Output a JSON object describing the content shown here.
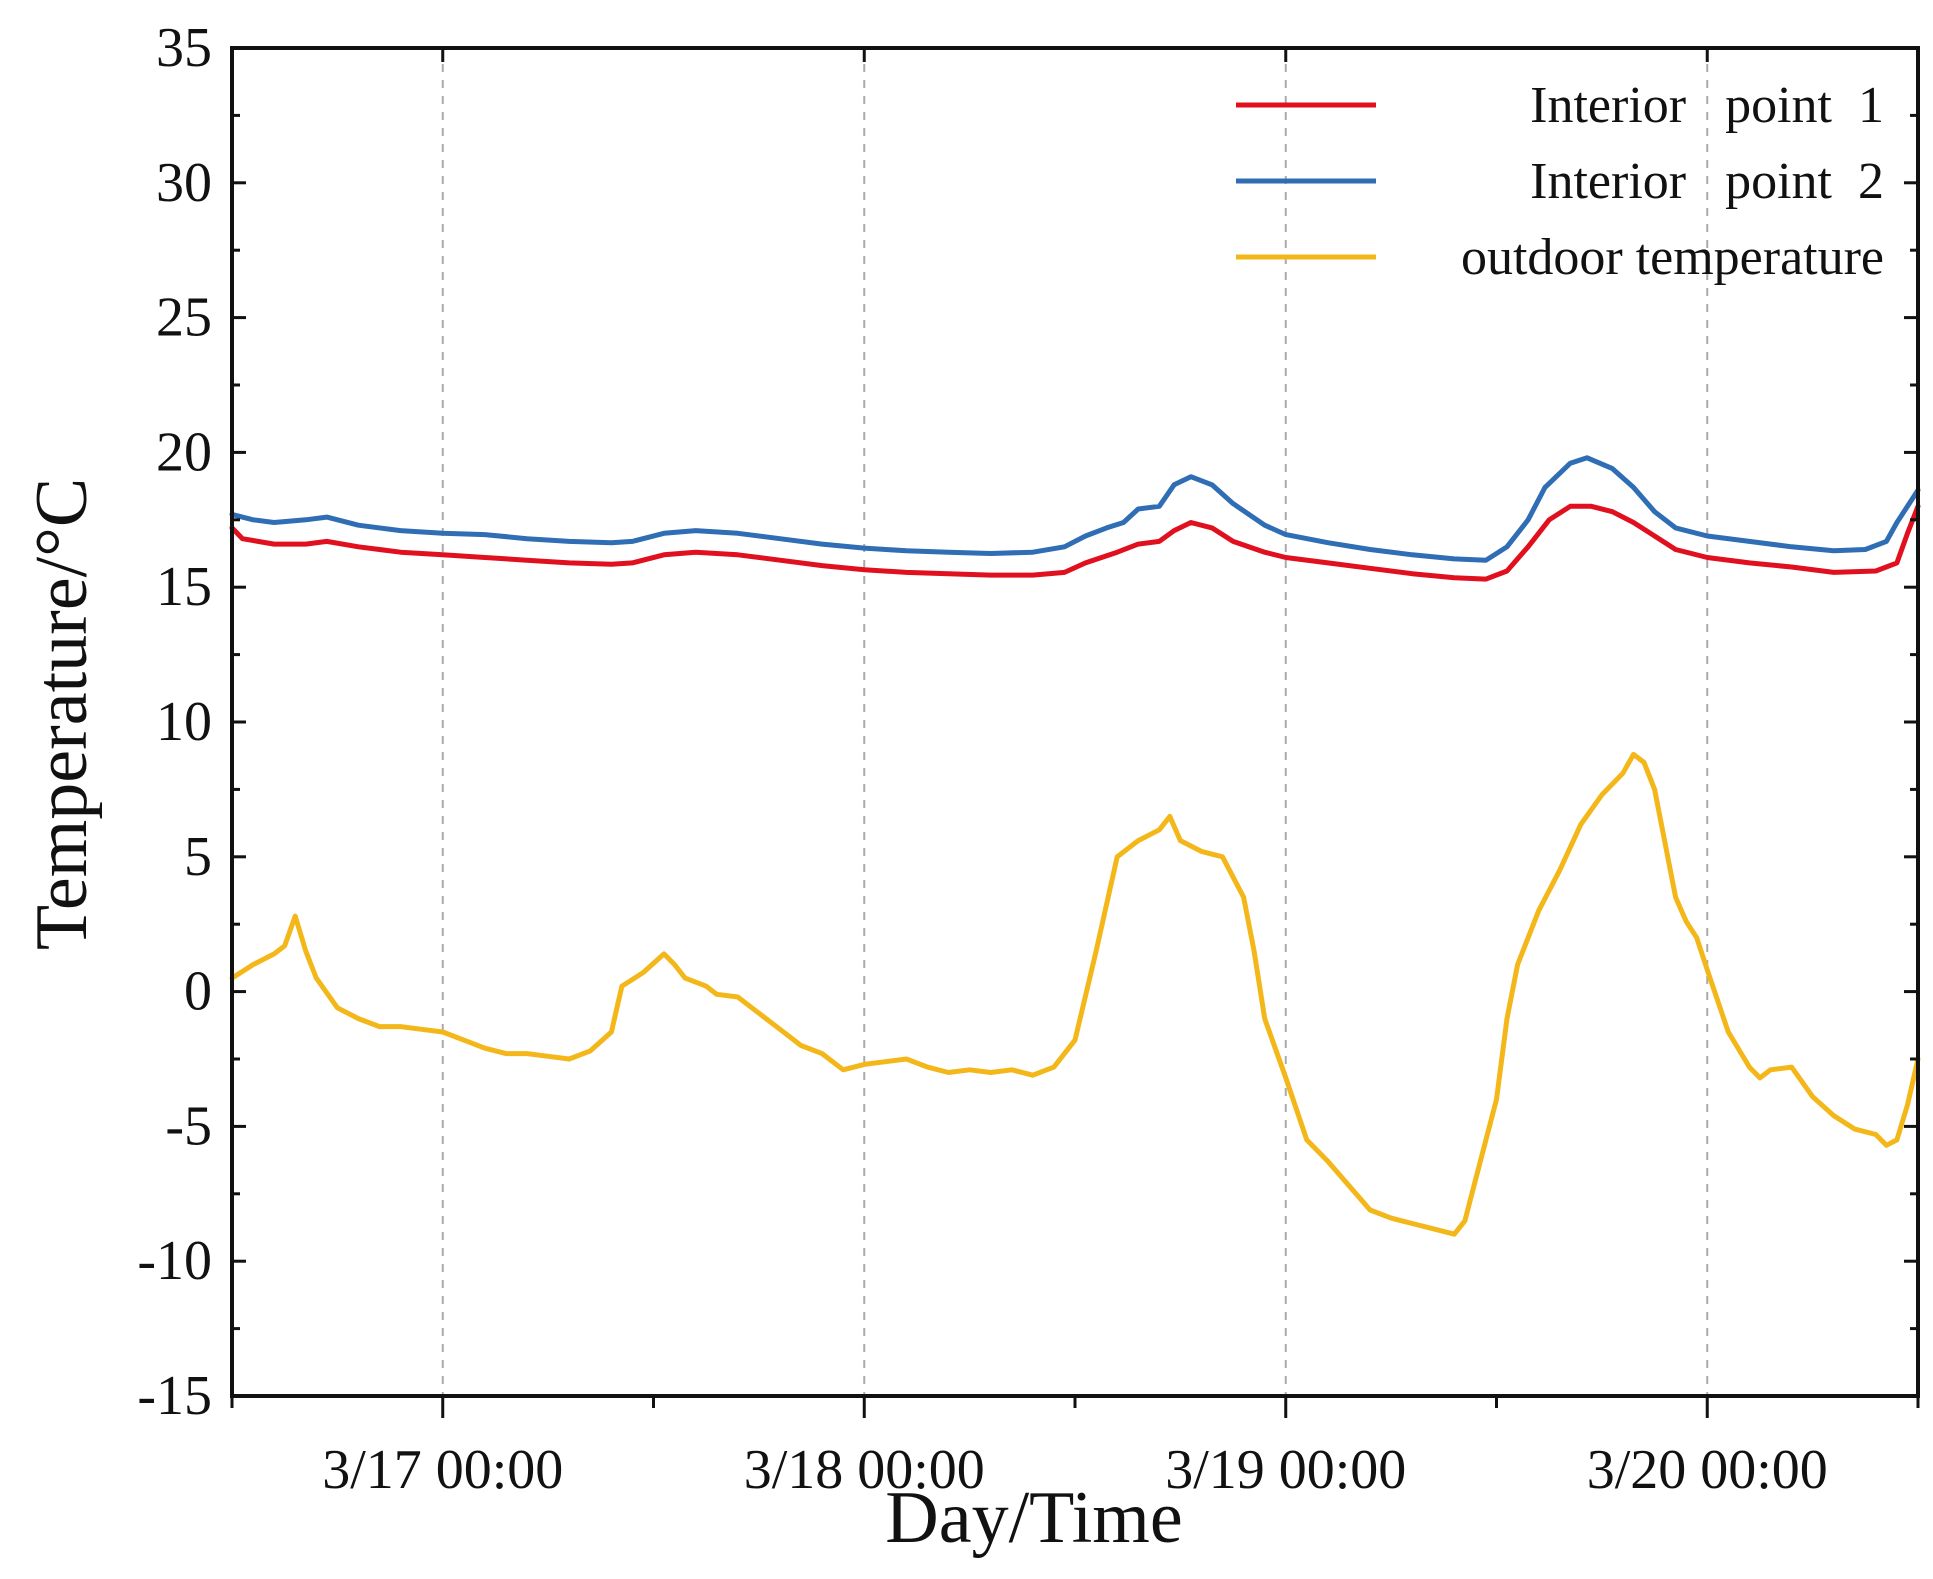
{
  "chart_data": {
    "type": "line",
    "title": "",
    "xlabel": "Day/Time",
    "ylabel": "Temperature/°C",
    "ylim": [
      -15,
      35
    ],
    "yticks": [
      -15,
      -10,
      -5,
      0,
      5,
      10,
      15,
      20,
      25,
      30,
      35
    ],
    "xlim": [
      -10,
      70
    ],
    "x_unit": "hours from 3/17 00:00",
    "xticks": [
      {
        "value": 0,
        "label": "3/17 00:00"
      },
      {
        "value": 20,
        "label": "3/18 00:00"
      },
      {
        "value": 40,
        "label": "3/19 00:00"
      },
      {
        "value": 60,
        "label": "3/20 00:00"
      }
    ],
    "x_minor_ticks": [
      -10,
      10,
      30,
      50,
      70
    ],
    "grid": "vertical dashed at major x ticks",
    "legend_position": "top-right",
    "series": [
      {
        "name": "Interior   point  1",
        "color": "#e0101e",
        "points": [
          [
            -10,
            17.2
          ],
          [
            -9.5,
            16.8
          ],
          [
            -8,
            16.6
          ],
          [
            -6.5,
            16.6
          ],
          [
            -5.5,
            16.7
          ],
          [
            -4,
            16.5
          ],
          [
            -2,
            16.3
          ],
          [
            0,
            16.2
          ],
          [
            2,
            16.1
          ],
          [
            4,
            16.0
          ],
          [
            6,
            15.9
          ],
          [
            8,
            15.85
          ],
          [
            9,
            15.9
          ],
          [
            10.5,
            16.2
          ],
          [
            12,
            16.3
          ],
          [
            14,
            16.2
          ],
          [
            16,
            16.0
          ],
          [
            18,
            15.8
          ],
          [
            20,
            15.65
          ],
          [
            22,
            15.55
          ],
          [
            24,
            15.5
          ],
          [
            26,
            15.45
          ],
          [
            28,
            15.45
          ],
          [
            29.5,
            15.55
          ],
          [
            30.5,
            15.9
          ],
          [
            32,
            16.3
          ],
          [
            33,
            16.6
          ],
          [
            34,
            16.7
          ],
          [
            34.7,
            17.1
          ],
          [
            35.5,
            17.4
          ],
          [
            36.5,
            17.2
          ],
          [
            37.5,
            16.7
          ],
          [
            39,
            16.3
          ],
          [
            40,
            16.1
          ],
          [
            42,
            15.9
          ],
          [
            44,
            15.7
          ],
          [
            46,
            15.5
          ],
          [
            48,
            15.35
          ],
          [
            49.5,
            15.3
          ],
          [
            50.5,
            15.6
          ],
          [
            51.5,
            16.5
          ],
          [
            52.5,
            17.5
          ],
          [
            53.5,
            18.0
          ],
          [
            54.5,
            18.0
          ],
          [
            55.5,
            17.8
          ],
          [
            56.5,
            17.4
          ],
          [
            57.5,
            16.9
          ],
          [
            58.5,
            16.4
          ],
          [
            60,
            16.1
          ],
          [
            62,
            15.9
          ],
          [
            64,
            15.75
          ],
          [
            66,
            15.55
          ],
          [
            68,
            15.6
          ],
          [
            69,
            15.9
          ],
          [
            69.5,
            17.0
          ],
          [
            70,
            18.0
          ]
        ]
      },
      {
        "name": "Interior   point  2",
        "color": "#2f6db4",
        "points": [
          [
            -10,
            17.7
          ],
          [
            -9,
            17.5
          ],
          [
            -8,
            17.4
          ],
          [
            -6.5,
            17.5
          ],
          [
            -5.5,
            17.6
          ],
          [
            -4,
            17.3
          ],
          [
            -2,
            17.1
          ],
          [
            0,
            17.0
          ],
          [
            2,
            16.95
          ],
          [
            4,
            16.8
          ],
          [
            6,
            16.7
          ],
          [
            8,
            16.65
          ],
          [
            9,
            16.7
          ],
          [
            10.5,
            17.0
          ],
          [
            12,
            17.1
          ],
          [
            14,
            17.0
          ],
          [
            16,
            16.8
          ],
          [
            18,
            16.6
          ],
          [
            20,
            16.45
          ],
          [
            22,
            16.35
          ],
          [
            24,
            16.3
          ],
          [
            26,
            16.25
          ],
          [
            28,
            16.3
          ],
          [
            29.5,
            16.5
          ],
          [
            30.5,
            16.9
          ],
          [
            31.5,
            17.2
          ],
          [
            32.3,
            17.4
          ],
          [
            33,
            17.9
          ],
          [
            34,
            18.0
          ],
          [
            34.7,
            18.8
          ],
          [
            35.5,
            19.1
          ],
          [
            36.5,
            18.8
          ],
          [
            37.5,
            18.1
          ],
          [
            39,
            17.3
          ],
          [
            40,
            16.95
          ],
          [
            42,
            16.65
          ],
          [
            44,
            16.4
          ],
          [
            46,
            16.2
          ],
          [
            48,
            16.05
          ],
          [
            49.5,
            16.0
          ],
          [
            50.5,
            16.5
          ],
          [
            51.5,
            17.5
          ],
          [
            52.3,
            18.7
          ],
          [
            53.5,
            19.6
          ],
          [
            54.3,
            19.8
          ],
          [
            55.5,
            19.4
          ],
          [
            56.5,
            18.7
          ],
          [
            57.5,
            17.8
          ],
          [
            58.5,
            17.2
          ],
          [
            60,
            16.9
          ],
          [
            62,
            16.7
          ],
          [
            64,
            16.5
          ],
          [
            66,
            16.35
          ],
          [
            67.5,
            16.4
          ],
          [
            68.5,
            16.7
          ],
          [
            69,
            17.4
          ],
          [
            69.5,
            18.0
          ],
          [
            70,
            18.6
          ]
        ]
      },
      {
        "name": "outdoor temperature",
        "color": "#f4b71a",
        "points": [
          [
            -10,
            0.5
          ],
          [
            -9,
            1.0
          ],
          [
            -8,
            1.4
          ],
          [
            -7.5,
            1.7
          ],
          [
            -7,
            2.8
          ],
          [
            -6.5,
            1.5
          ],
          [
            -6,
            0.5
          ],
          [
            -5,
            -0.6
          ],
          [
            -4,
            -1.0
          ],
          [
            -3,
            -1.3
          ],
          [
            -2,
            -1.3
          ],
          [
            -1,
            -1.4
          ],
          [
            0,
            -1.5
          ],
          [
            1,
            -1.8
          ],
          [
            2,
            -2.1
          ],
          [
            3,
            -2.3
          ],
          [
            4,
            -2.3
          ],
          [
            5,
            -2.4
          ],
          [
            6,
            -2.5
          ],
          [
            7,
            -2.2
          ],
          [
            8,
            -1.5
          ],
          [
            8.5,
            0.2
          ],
          [
            9.5,
            0.7
          ],
          [
            10.5,
            1.4
          ],
          [
            11,
            1.0
          ],
          [
            11.5,
            0.5
          ],
          [
            12.5,
            0.2
          ],
          [
            13,
            -0.1
          ],
          [
            14,
            -0.2
          ],
          [
            15,
            -0.8
          ],
          [
            16,
            -1.4
          ],
          [
            17,
            -2.0
          ],
          [
            18,
            -2.3
          ],
          [
            19,
            -2.9
          ],
          [
            20,
            -2.7
          ],
          [
            21,
            -2.6
          ],
          [
            22,
            -2.5
          ],
          [
            23,
            -2.8
          ],
          [
            24,
            -3.0
          ],
          [
            25,
            -2.9
          ],
          [
            26,
            -3.0
          ],
          [
            27,
            -2.9
          ],
          [
            28,
            -3.1
          ],
          [
            29,
            -2.8
          ],
          [
            30,
            -1.8
          ],
          [
            31,
            1.5
          ],
          [
            32,
            5.0
          ],
          [
            33,
            5.6
          ],
          [
            34,
            6.0
          ],
          [
            34.5,
            6.5
          ],
          [
            35,
            5.6
          ],
          [
            36,
            5.2
          ],
          [
            37,
            5.0
          ],
          [
            38,
            3.5
          ],
          [
            38.5,
            1.5
          ],
          [
            39,
            -1.0
          ],
          [
            40,
            -3.2
          ],
          [
            41,
            -5.5
          ],
          [
            42,
            -6.3
          ],
          [
            43,
            -7.2
          ],
          [
            44,
            -8.1
          ],
          [
            45,
            -8.4
          ],
          [
            46,
            -8.6
          ],
          [
            47,
            -8.8
          ],
          [
            48,
            -9.0
          ],
          [
            48.5,
            -8.5
          ],
          [
            49,
            -7.0
          ],
          [
            50,
            -4.0
          ],
          [
            50.5,
            -1.0
          ],
          [
            51,
            1.0
          ],
          [
            52,
            3.0
          ],
          [
            53,
            4.5
          ],
          [
            54,
            6.2
          ],
          [
            55,
            7.3
          ],
          [
            56,
            8.1
          ],
          [
            56.5,
            8.8
          ],
          [
            57,
            8.5
          ],
          [
            57.5,
            7.5
          ],
          [
            58,
            5.5
          ],
          [
            58.5,
            3.5
          ],
          [
            59,
            2.6
          ],
          [
            59.5,
            2.0
          ],
          [
            60,
            0.8
          ],
          [
            61,
            -1.5
          ],
          [
            62,
            -2.8
          ],
          [
            62.5,
            -3.2
          ],
          [
            63,
            -2.9
          ],
          [
            64,
            -2.8
          ],
          [
            65,
            -3.9
          ],
          [
            66,
            -4.6
          ],
          [
            67,
            -5.1
          ],
          [
            68,
            -5.3
          ],
          [
            68.5,
            -5.7
          ],
          [
            69,
            -5.5
          ],
          [
            69.5,
            -4.2
          ],
          [
            70,
            -2.5
          ]
        ]
      }
    ]
  }
}
